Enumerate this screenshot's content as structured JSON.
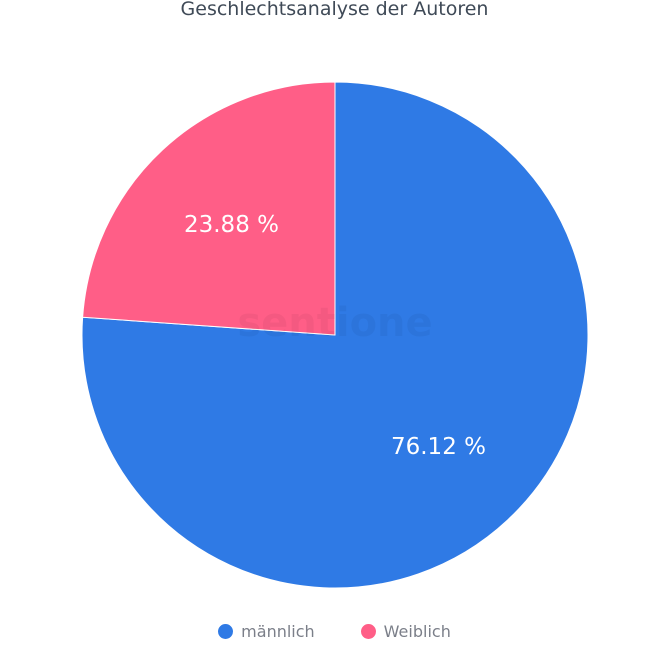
{
  "chart_data": {
    "type": "pie",
    "title": "Geschlechtsanalyse der Autoren",
    "slices": [
      {
        "name": "männlich",
        "value": 76.12,
        "label": "76.12 %",
        "color": "#2f7ae5"
      },
      {
        "name": "Weiblich",
        "value": 23.88,
        "label": "23.88 %",
        "color": "#ff5e87"
      }
    ],
    "start_angle": "top",
    "direction": "clockwise",
    "legend_position": "bottom"
  },
  "watermark": "sentione"
}
